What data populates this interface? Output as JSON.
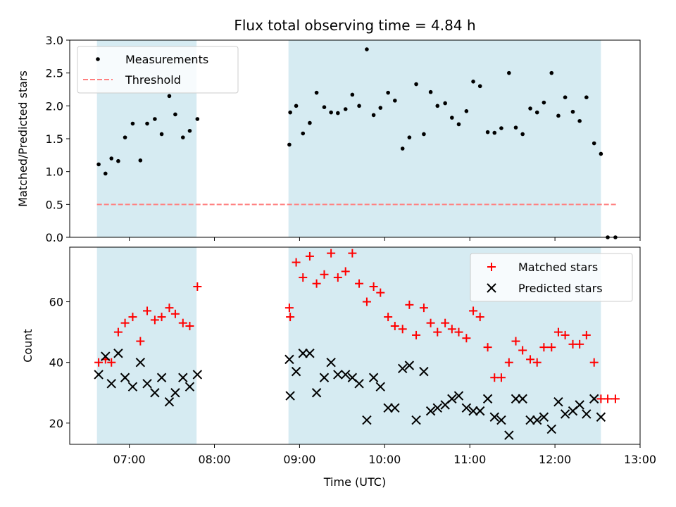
{
  "chart_data": [
    {
      "type": "scatter",
      "title": "Flux total observing time = 4.84 h",
      "xlabel": "",
      "ylabel": "Matched/Predicted stars",
      "ylim": [
        0,
        3.0
      ],
      "yticks": [
        "0.0",
        "0.5",
        "1.0",
        "1.5",
        "2.0",
        "2.5",
        "3.0"
      ],
      "shaded_spans": [
        [
          6.62,
          7.79
        ],
        [
          8.87,
          12.54
        ]
      ],
      "threshold": {
        "name": "Threshold",
        "value": 0.5,
        "x_range": [
          6.62,
          12.72
        ],
        "color": "#ff7f7f"
      },
      "legend": [
        "Measurements",
        "Threshold"
      ],
      "series": [
        {
          "name": "Measurements",
          "x": [
            6.64,
            6.72,
            6.79,
            6.87,
            6.95,
            7.04,
            7.13,
            7.21,
            7.3,
            7.38,
            7.47,
            7.54,
            7.63,
            7.71,
            7.8,
            8.88,
            8.89,
            8.96,
            9.04,
            9.12,
            9.2,
            9.29,
            9.37,
            9.45,
            9.54,
            9.62,
            9.7,
            9.79,
            9.87,
            9.95,
            10.04,
            10.12,
            10.21,
            10.29,
            10.37,
            10.46,
            10.54,
            10.62,
            10.71,
            10.79,
            10.87,
            10.96,
            11.04,
            11.12,
            11.21,
            11.29,
            11.37,
            11.46,
            11.54,
            11.62,
            11.71,
            11.79,
            11.87,
            11.96,
            12.04,
            12.12,
            12.21,
            12.29,
            12.37,
            12.46,
            12.54,
            12.62,
            12.71
          ],
          "y": [
            1.11,
            0.97,
            1.2,
            1.16,
            1.52,
            1.73,
            1.17,
            1.73,
            1.8,
            1.57,
            2.15,
            1.87,
            1.52,
            1.62,
            1.8,
            1.41,
            1.9,
            2.0,
            1.58,
            1.74,
            2.2,
            1.98,
            1.9,
            1.89,
            1.95,
            2.17,
            2.0,
            2.86,
            1.86,
            1.97,
            2.2,
            2.08,
            1.35,
            1.52,
            2.33,
            1.57,
            2.21,
            2.0,
            2.04,
            1.82,
            1.72,
            1.92,
            2.37,
            2.3,
            1.6,
            1.59,
            1.66,
            2.5,
            1.67,
            1.57,
            1.96,
            1.9,
            2.05,
            2.5,
            1.85,
            2.13,
            1.91,
            1.77,
            2.13,
            1.43,
            1.27,
            0.0,
            0.0
          ]
        }
      ]
    },
    {
      "type": "scatter",
      "title": "",
      "xlabel": "Time (UTC)",
      "ylabel": "Count",
      "ylim": [
        13,
        78
      ],
      "yticks": [
        "20",
        "40",
        "60"
      ],
      "xlim": [
        6.3,
        13.0
      ],
      "xticks": [
        "07:00",
        "08:00",
        "09:00",
        "10:00",
        "11:00",
        "12:00",
        "13:00"
      ],
      "shaded_spans": [
        [
          6.62,
          7.79
        ],
        [
          8.87,
          12.54
        ]
      ],
      "legend": [
        "Matched stars",
        "Predicted stars"
      ],
      "series": [
        {
          "name": "Matched stars",
          "color": "#ff0000",
          "x": [
            6.64,
            6.72,
            6.79,
            6.87,
            6.95,
            7.04,
            7.13,
            7.21,
            7.3,
            7.38,
            7.47,
            7.54,
            7.63,
            7.71,
            7.8,
            8.88,
            8.89,
            8.96,
            9.04,
            9.12,
            9.2,
            9.29,
            9.37,
            9.45,
            9.54,
            9.62,
            9.7,
            9.79,
            9.87,
            9.95,
            10.04,
            10.12,
            10.21,
            10.29,
            10.37,
            10.46,
            10.54,
            10.62,
            10.71,
            10.79,
            10.87,
            10.96,
            11.04,
            11.12,
            11.21,
            11.29,
            11.37,
            11.46,
            11.54,
            11.62,
            11.71,
            11.79,
            11.87,
            11.96,
            12.04,
            12.12,
            12.21,
            12.29,
            12.37,
            12.46,
            12.54,
            12.62,
            12.71
          ],
          "y": [
            40,
            41,
            40,
            50,
            53,
            55,
            47,
            57,
            54,
            55,
            58,
            56,
            53,
            52,
            65,
            58,
            55,
            73,
            68,
            75,
            66,
            69,
            76,
            68,
            70,
            76,
            66,
            60,
            65,
            63,
            55,
            52,
            51,
            59,
            49,
            58,
            53,
            50,
            53,
            51,
            50,
            48,
            57,
            55,
            45,
            35,
            35,
            40,
            47,
            44,
            41,
            40,
            45,
            45,
            50,
            49,
            46,
            46,
            49,
            40,
            28,
            28,
            28
          ]
        },
        {
          "name": "Predicted stars",
          "color": "#000000",
          "x": [
            6.64,
            6.72,
            6.79,
            6.87,
            6.95,
            7.04,
            7.13,
            7.21,
            7.3,
            7.38,
            7.47,
            7.54,
            7.63,
            7.71,
            7.8,
            8.88,
            8.89,
            8.96,
            9.04,
            9.12,
            9.2,
            9.29,
            9.37,
            9.45,
            9.54,
            9.62,
            9.7,
            9.79,
            9.87,
            9.95,
            10.04,
            10.12,
            10.21,
            10.29,
            10.37,
            10.46,
            10.54,
            10.62,
            10.71,
            10.79,
            10.87,
            10.96,
            11.04,
            11.12,
            11.21,
            11.29,
            11.37,
            11.46,
            11.54,
            11.62,
            11.71,
            11.79,
            11.87,
            11.96,
            12.04,
            12.12,
            12.21,
            12.29,
            12.37,
            12.46,
            12.54
          ],
          "y": [
            36,
            42,
            33,
            43,
            35,
            32,
            40,
            33,
            30,
            35,
            27,
            30,
            35,
            32,
            36,
            41,
            29,
            37,
            43,
            43,
            30,
            35,
            40,
            36,
            36,
            35,
            33,
            21,
            35,
            32,
            25,
            25,
            38,
            39,
            21,
            37,
            24,
            25,
            26,
            28,
            29,
            25,
            24,
            24,
            28,
            22,
            21,
            16,
            28,
            28,
            21,
            21,
            22,
            18,
            27,
            23,
            24,
            26,
            23,
            28,
            22
          ]
        }
      ]
    }
  ]
}
